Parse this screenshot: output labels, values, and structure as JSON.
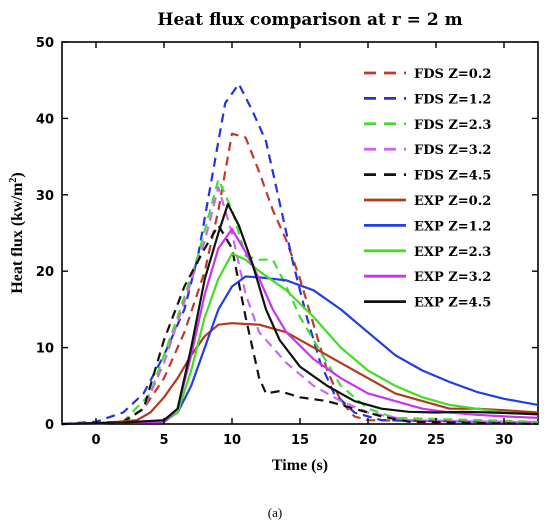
{
  "chart_data": {
    "type": "line",
    "title": "Heat flux comparison at r = 2 m",
    "xlabel": "Time (s)",
    "ylabel_main": "Heat flux (kw/m",
    "ylabel_sup": "2",
    "ylabel_close": ")",
    "caption": "(a)",
    "xlim": [
      -2.5,
      32.5
    ],
    "ylim": [
      0,
      50
    ],
    "xticks": [
      0,
      5,
      10,
      15,
      20,
      25,
      30
    ],
    "yticks": [
      0,
      10,
      20,
      30,
      40,
      50
    ],
    "grid": false,
    "legend_position": "top-right",
    "series": [
      {
        "name": "FDS Z=0.2",
        "color": "#c0392b",
        "dashed": true,
        "points": [
          [
            -2.5,
            0
          ],
          [
            2,
            0.2
          ],
          [
            3.5,
            2
          ],
          [
            5,
            6
          ],
          [
            6.5,
            12
          ],
          [
            8,
            20
          ],
          [
            9,
            28
          ],
          [
            10,
            38
          ],
          [
            11,
            37.5
          ],
          [
            12,
            33
          ],
          [
            13,
            28
          ],
          [
            14,
            24
          ],
          [
            15,
            19
          ],
          [
            16,
            13
          ],
          [
            17,
            7
          ],
          [
            18,
            3
          ],
          [
            19,
            1
          ],
          [
            20,
            0.5
          ],
          [
            32.5,
            0.2
          ]
        ]
      },
      {
        "name": "FDS Z=1.2",
        "color": "#2233dd",
        "dashed": true,
        "points": [
          [
            -2.5,
            0
          ],
          [
            0,
            0.3
          ],
          [
            2,
            1.5
          ],
          [
            3.5,
            4
          ],
          [
            5,
            9
          ],
          [
            6.5,
            15
          ],
          [
            7.5,
            22
          ],
          [
            8.5,
            32
          ],
          [
            9.5,
            42
          ],
          [
            10.5,
            44.5
          ],
          [
            11.5,
            41
          ],
          [
            12.5,
            37
          ],
          [
            13.5,
            29
          ],
          [
            14.5,
            21
          ],
          [
            15.5,
            14
          ],
          [
            16.5,
            8
          ],
          [
            17.5,
            4
          ],
          [
            19,
            1.5
          ],
          [
            21,
            0.5
          ],
          [
            32.5,
            0.2
          ]
        ]
      },
      {
        "name": "FDS Z=2.3",
        "color": "#44dd33",
        "dashed": true,
        "points": [
          [
            -2.5,
            0
          ],
          [
            2,
            0.3
          ],
          [
            4,
            4
          ],
          [
            6,
            14
          ],
          [
            7.5,
            22
          ],
          [
            9,
            32
          ],
          [
            10,
            28
          ],
          [
            11,
            22
          ],
          [
            12,
            21.5
          ],
          [
            13,
            21.5
          ],
          [
            14,
            18
          ],
          [
            15,
            14
          ],
          [
            16,
            11
          ],
          [
            17,
            8
          ],
          [
            18,
            5
          ],
          [
            20,
            2
          ],
          [
            22,
            0.8
          ],
          [
            32.5,
            0.3
          ]
        ]
      },
      {
        "name": "FDS Z=3.2",
        "color": "#cc66ee",
        "dashed": true,
        "points": [
          [
            -2.5,
            0
          ],
          [
            2,
            0.3
          ],
          [
            3.5,
            2
          ],
          [
            5,
            8
          ],
          [
            6.5,
            16
          ],
          [
            8,
            24
          ],
          [
            9,
            31
          ],
          [
            10,
            25
          ],
          [
            11,
            17
          ],
          [
            12,
            12
          ],
          [
            13,
            10
          ],
          [
            14,
            8
          ],
          [
            16,
            5
          ],
          [
            18,
            3
          ],
          [
            20,
            1.5
          ],
          [
            23,
            0.5
          ],
          [
            32.5,
            0.2
          ]
        ]
      },
      {
        "name": "FDS Z=4.5",
        "color": "#111111",
        "dashed": true,
        "points": [
          [
            -2.5,
            0
          ],
          [
            2,
            0.3
          ],
          [
            3.5,
            2
          ],
          [
            5,
            11
          ],
          [
            6.5,
            18
          ],
          [
            8,
            23
          ],
          [
            9,
            26
          ],
          [
            10,
            23
          ],
          [
            11,
            14
          ],
          [
            12,
            6
          ],
          [
            12.5,
            4
          ],
          [
            13.5,
            4.3
          ],
          [
            15,
            3.5
          ],
          [
            17,
            3
          ],
          [
            19,
            2
          ],
          [
            21,
            1
          ],
          [
            23,
            0.3
          ],
          [
            32.5,
            0
          ]
        ]
      },
      {
        "name": "EXP Z=0.2",
        "color": "#b03a1e",
        "dashed": false,
        "points": [
          [
            -2.5,
            0
          ],
          [
            1,
            0.2
          ],
          [
            3,
            0.5
          ],
          [
            4,
            1.5
          ],
          [
            5,
            3.5
          ],
          [
            6,
            6
          ],
          [
            7,
            9
          ],
          [
            8,
            11.5
          ],
          [
            9,
            13
          ],
          [
            10,
            13.2
          ],
          [
            12,
            13
          ],
          [
            14,
            12
          ],
          [
            16,
            10
          ],
          [
            18,
            8
          ],
          [
            20,
            6
          ],
          [
            22,
            4
          ],
          [
            24,
            3
          ],
          [
            26,
            2
          ],
          [
            28,
            2
          ],
          [
            30,
            1.8
          ],
          [
            32.5,
            1.5
          ]
        ]
      },
      {
        "name": "EXP Z=1.2",
        "color": "#1f3fe0",
        "dashed": false,
        "points": [
          [
            -2.5,
            0
          ],
          [
            2,
            0.2
          ],
          [
            5,
            0.3
          ],
          [
            6,
            1.5
          ],
          [
            7,
            5
          ],
          [
            8,
            10
          ],
          [
            9,
            15
          ],
          [
            10,
            18
          ],
          [
            11,
            19.3
          ],
          [
            12,
            19.2
          ],
          [
            14,
            18.8
          ],
          [
            16,
            17.5
          ],
          [
            18,
            15
          ],
          [
            20,
            12
          ],
          [
            22,
            9
          ],
          [
            24,
            7
          ],
          [
            26,
            5.5
          ],
          [
            28,
            4.2
          ],
          [
            30,
            3.3
          ],
          [
            32.5,
            2.5
          ]
        ]
      },
      {
        "name": "EXP Z=2.3",
        "color": "#44dd22",
        "dashed": false,
        "points": [
          [
            -2.5,
            0
          ],
          [
            2,
            0.2
          ],
          [
            5,
            0.3
          ],
          [
            6,
            1.5
          ],
          [
            7,
            7
          ],
          [
            8,
            14
          ],
          [
            9,
            19
          ],
          [
            10,
            22.3
          ],
          [
            11,
            21.5
          ],
          [
            12,
            20
          ],
          [
            14,
            17.5
          ],
          [
            16,
            14
          ],
          [
            18,
            10
          ],
          [
            20,
            7
          ],
          [
            22,
            5
          ],
          [
            24,
            3.5
          ],
          [
            26,
            2.5
          ],
          [
            28,
            2
          ],
          [
            30,
            1.5
          ],
          [
            32.5,
            1.2
          ]
        ]
      },
      {
        "name": "EXP Z=3.2",
        "color": "#cc33ee",
        "dashed": false,
        "points": [
          [
            -2.5,
            0
          ],
          [
            2,
            0.2
          ],
          [
            5,
            0.3
          ],
          [
            6,
            2
          ],
          [
            7,
            9
          ],
          [
            8,
            17
          ],
          [
            9,
            23
          ],
          [
            10,
            25.5
          ],
          [
            11,
            22.5
          ],
          [
            12,
            19
          ],
          [
            13,
            15
          ],
          [
            14,
            12
          ],
          [
            16,
            8.5
          ],
          [
            18,
            6
          ],
          [
            20,
            4
          ],
          [
            22,
            3
          ],
          [
            24,
            2
          ],
          [
            26,
            1.5
          ],
          [
            28,
            1.2
          ],
          [
            30,
            1
          ],
          [
            32.5,
            0.8
          ]
        ]
      },
      {
        "name": "EXP Z=4.5",
        "color": "#111111",
        "dashed": false,
        "points": [
          [
            -2.5,
            0
          ],
          [
            2,
            0.2
          ],
          [
            5,
            0.5
          ],
          [
            6,
            2
          ],
          [
            7,
            10
          ],
          [
            8,
            19
          ],
          [
            9,
            25
          ],
          [
            9.7,
            28.8
          ],
          [
            10.5,
            26
          ],
          [
            11.5,
            21
          ],
          [
            12.5,
            15
          ],
          [
            13.5,
            11
          ],
          [
            15,
            7.5
          ],
          [
            17,
            5
          ],
          [
            19,
            3
          ],
          [
            21,
            2
          ],
          [
            23,
            1.6
          ],
          [
            25,
            1.5
          ],
          [
            27,
            1.6
          ],
          [
            29,
            1.5
          ],
          [
            32.5,
            1.3
          ]
        ]
      }
    ]
  }
}
